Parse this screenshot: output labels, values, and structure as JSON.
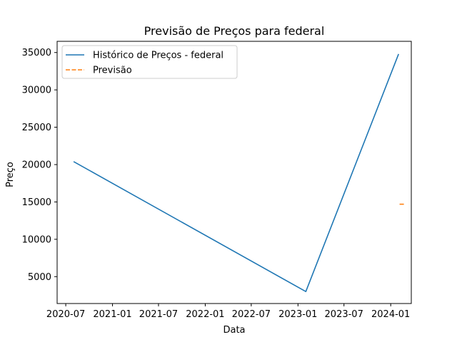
{
  "chart_data": {
    "type": "line",
    "title": "Previsão de Preços para federal",
    "xlabel": "Data",
    "ylabel": "Preço",
    "x_ticks": [
      "2020-07",
      "2021-01",
      "2021-07",
      "2022-01",
      "2022-07",
      "2023-01",
      "2023-07",
      "2024-01"
    ],
    "y_ticks": [
      5000,
      10000,
      15000,
      20000,
      25000,
      30000,
      35000
    ],
    "xlim": [
      "2020-05-28",
      "2024-03-22"
    ],
    "ylim": [
      1400,
      36500
    ],
    "legend_position": "top-left",
    "series": [
      {
        "name": "Histórico de Preços - federal",
        "style": "solid",
        "color": "#1f77b4",
        "x": [
          "2020-08-01",
          "2023-02-01",
          "2024-02-01"
        ],
        "values": [
          20400,
          3000,
          34800
        ]
      },
      {
        "name": "Previsão",
        "style": "dashed",
        "color": "#ff7f0e",
        "x": [
          "2024-02-05",
          "2024-02-25"
        ],
        "values": [
          14700,
          14700
        ]
      }
    ]
  }
}
